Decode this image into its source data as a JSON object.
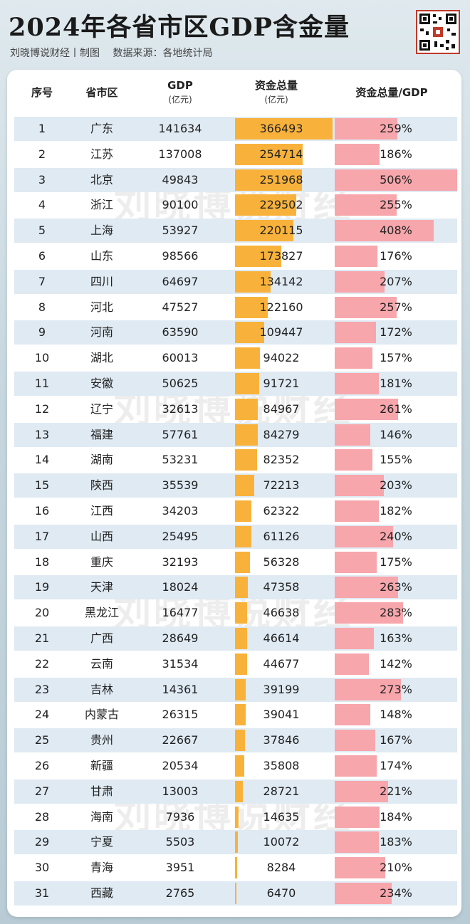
{
  "title": "2024年各省市区GDP含金量",
  "subtitle": [
    "刘晓博说财经丨制图",
    "数据来源：各地统计局"
  ],
  "watermark": "刘晓博说财经",
  "headers": {
    "rank": "序号",
    "region": "省市区",
    "gdp": "GDP",
    "gdp_unit": "(亿元)",
    "funds": "资金总量",
    "funds_unit": "(亿元)",
    "ratio": "资金总量/GDP"
  },
  "colors": {
    "funds_bar": "#f8b23b",
    "ratio_bar": "#f7a6ac",
    "band": "#dfeaf3"
  },
  "chart_data": {
    "type": "table",
    "columns": [
      "序号",
      "省市区",
      "GDP(亿元)",
      "资金总量(亿元)",
      "资金总量/GDP"
    ],
    "rows": [
      {
        "rank": "1",
        "region": "广东",
        "gdp": "141634",
        "funds": "366493",
        "ratio": "259%"
      },
      {
        "rank": "2",
        "region": "江苏",
        "gdp": "137008",
        "funds": "254714",
        "ratio": "186%"
      },
      {
        "rank": "3",
        "region": "北京",
        "gdp": "49843",
        "funds": "251968",
        "ratio": "506%"
      },
      {
        "rank": "4",
        "region": "浙江",
        "gdp": "90100",
        "funds": "229502",
        "ratio": "255%"
      },
      {
        "rank": "5",
        "region": "上海",
        "gdp": "53927",
        "funds": "220115",
        "ratio": "408%"
      },
      {
        "rank": "6",
        "region": "山东",
        "gdp": "98566",
        "funds": "173827",
        "ratio": "176%"
      },
      {
        "rank": "7",
        "region": "四川",
        "gdp": "64697",
        "funds": "134142",
        "ratio": "207%"
      },
      {
        "rank": "8",
        "region": "河北",
        "gdp": "47527",
        "funds": "122160",
        "ratio": "257%"
      },
      {
        "rank": "9",
        "region": "河南",
        "gdp": "63590",
        "funds": "109447",
        "ratio": "172%"
      },
      {
        "rank": "10",
        "region": "湖北",
        "gdp": "60013",
        "funds": "94022",
        "ratio": "157%"
      },
      {
        "rank": "11",
        "region": "安徽",
        "gdp": "50625",
        "funds": "91721",
        "ratio": "181%"
      },
      {
        "rank": "12",
        "region": "辽宁",
        "gdp": "32613",
        "funds": "84967",
        "ratio": "261%"
      },
      {
        "rank": "13",
        "region": "福建",
        "gdp": "57761",
        "funds": "84279",
        "ratio": "146%"
      },
      {
        "rank": "14",
        "region": "湖南",
        "gdp": "53231",
        "funds": "82352",
        "ratio": "155%"
      },
      {
        "rank": "15",
        "region": "陕西",
        "gdp": "35539",
        "funds": "72213",
        "ratio": "203%"
      },
      {
        "rank": "16",
        "region": "江西",
        "gdp": "34203",
        "funds": "62322",
        "ratio": "182%"
      },
      {
        "rank": "17",
        "region": "山西",
        "gdp": "25495",
        "funds": "61126",
        "ratio": "240%"
      },
      {
        "rank": "18",
        "region": "重庆",
        "gdp": "32193",
        "funds": "56328",
        "ratio": "175%"
      },
      {
        "rank": "19",
        "region": "天津",
        "gdp": "18024",
        "funds": "47358",
        "ratio": "263%"
      },
      {
        "rank": "20",
        "region": "黑龙江",
        "gdp": "16477",
        "funds": "46638",
        "ratio": "283%"
      },
      {
        "rank": "21",
        "region": "广西",
        "gdp": "28649",
        "funds": "46614",
        "ratio": "163%"
      },
      {
        "rank": "22",
        "region": "云南",
        "gdp": "31534",
        "funds": "44677",
        "ratio": "142%"
      },
      {
        "rank": "23",
        "region": "吉林",
        "gdp": "14361",
        "funds": "39199",
        "ratio": "273%"
      },
      {
        "rank": "24",
        "region": "内蒙古",
        "gdp": "26315",
        "funds": "39041",
        "ratio": "148%"
      },
      {
        "rank": "25",
        "region": "贵州",
        "gdp": "22667",
        "funds": "37846",
        "ratio": "167%"
      },
      {
        "rank": "26",
        "region": "新疆",
        "gdp": "20534",
        "funds": "35808",
        "ratio": "174%"
      },
      {
        "rank": "27",
        "region": "甘肃",
        "gdp": "13003",
        "funds": "28721",
        "ratio": "221%"
      },
      {
        "rank": "28",
        "region": "海南",
        "gdp": "7936",
        "funds": "14635",
        "ratio": "184%"
      },
      {
        "rank": "29",
        "region": "宁夏",
        "gdp": "5503",
        "funds": "10072",
        "ratio": "183%"
      },
      {
        "rank": "30",
        "region": "青海",
        "gdp": "3951",
        "funds": "8284",
        "ratio": "210%"
      },
      {
        "rank": "31",
        "region": "西藏",
        "gdp": "2765",
        "funds": "6470",
        "ratio": "234%"
      }
    ]
  }
}
